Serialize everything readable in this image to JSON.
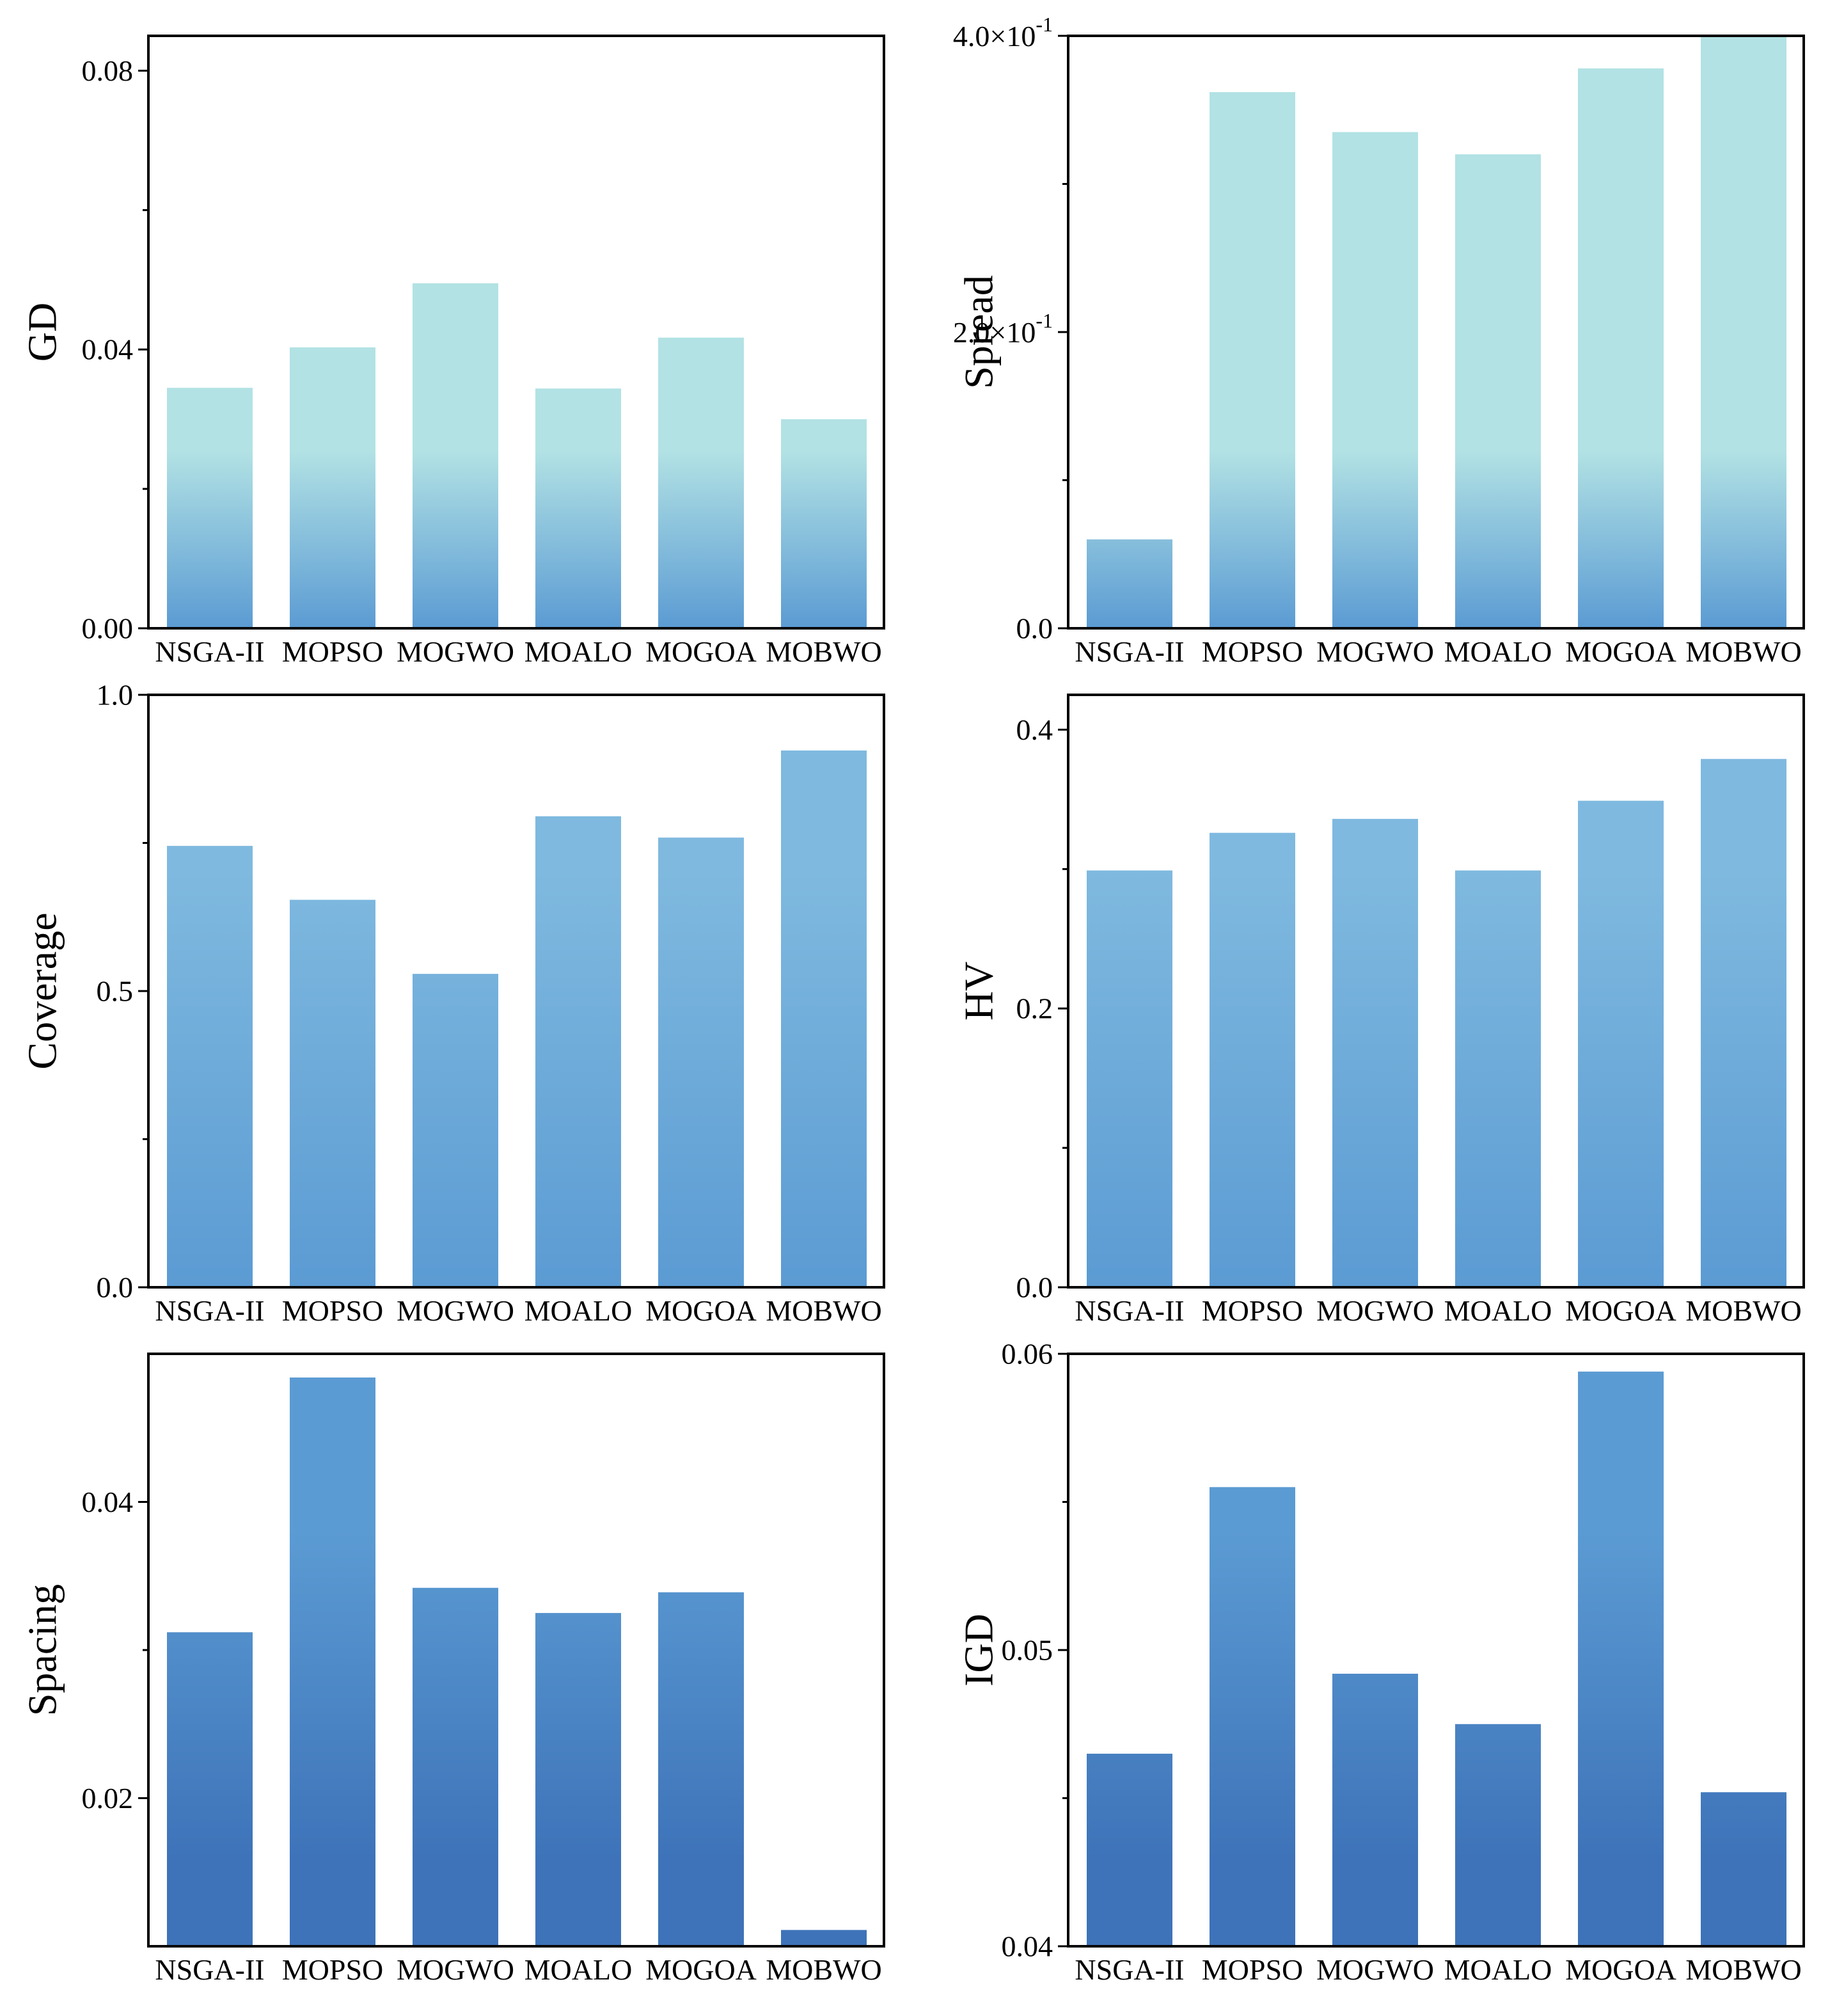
{
  "figure": {
    "colors": {
      "top": "#b2e2e4",
      "mid": "#7fb9df",
      "low": "#5b9bd3",
      "deep": "#3e73b9"
    }
  },
  "chart_data": [
    {
      "id": "gd",
      "type": "bar",
      "title": "",
      "ylabel": "GD",
      "xlabel": "",
      "categories": [
        "NSGA-II",
        "MOPSO",
        "MOGWO",
        "MOALO",
        "MOGOA",
        "MOBWO"
      ],
      "values": [
        0.0345,
        0.0403,
        0.0495,
        0.0344,
        0.0417,
        0.03
      ],
      "ylim": [
        0,
        0.085
      ],
      "major_ticks": [
        0,
        0.04,
        0.08
      ],
      "tick_labels": [
        "0.00",
        "0.04",
        "0.08"
      ],
      "minor_ticks": [
        0.02,
        0.06
      ],
      "grid": false,
      "gradient": {
        "range": [
          0,
          0.085
        ],
        "from": "low",
        "to": "top",
        "start": 0.0,
        "end": 0.3
      }
    },
    {
      "id": "spread",
      "type": "bar",
      "title": "",
      "ylabel": "Spread",
      "xlabel": "",
      "categories": [
        "NSGA-II",
        "MOPSO",
        "MOGWO",
        "MOALO",
        "MOGOA",
        "MOBWO"
      ],
      "values": [
        0.06,
        0.362,
        0.335,
        0.32,
        0.378,
        0.4
      ],
      "ylim": [
        0,
        0.4
      ],
      "major_ticks": [
        0,
        0.2,
        0.4
      ],
      "tick_labels": [
        {
          "text": "0.0"
        },
        {
          "mantissa": "2.0×10",
          "exponent": "-1"
        },
        {
          "mantissa": "4.0×10",
          "exponent": "-1"
        }
      ],
      "minor_ticks": [
        0.1,
        0.3
      ],
      "grid": false,
      "gradient": {
        "range": [
          0,
          0.4
        ],
        "from": "low",
        "to": "top",
        "start": 0.0,
        "end": 0.3
      }
    },
    {
      "id": "coverage",
      "type": "bar",
      "title": "",
      "ylabel": "Coverage",
      "xlabel": "",
      "categories": [
        "NSGA-II",
        "MOPSO",
        "MOGWO",
        "MOALO",
        "MOGOA",
        "MOBWO"
      ],
      "values": [
        0.745,
        0.654,
        0.529,
        0.795,
        0.759,
        0.906
      ],
      "ylim": [
        0,
        1.0
      ],
      "major_ticks": [
        0,
        0.5,
        1.0
      ],
      "tick_labels": [
        "0.0",
        "0.5",
        "1.0"
      ],
      "minor_ticks": [
        0.25,
        0.75
      ],
      "grid": false,
      "gradient": {
        "range": [
          0,
          1.0
        ],
        "from": "low",
        "to": "mid",
        "start": 0.0,
        "end": 0.7
      }
    },
    {
      "id": "hv",
      "type": "bar",
      "title": "",
      "ylabel": "HV",
      "xlabel": "",
      "categories": [
        "NSGA-II",
        "MOPSO",
        "MOGWO",
        "MOALO",
        "MOGOA",
        "MOBWO"
      ],
      "values": [
        0.299,
        0.326,
        0.336,
        0.299,
        0.349,
        0.379
      ],
      "ylim": [
        0,
        0.425
      ],
      "major_ticks": [
        0,
        0.2,
        0.4
      ],
      "tick_labels": [
        "0.0",
        "0.2",
        "0.4"
      ],
      "minor_ticks": [
        0.1,
        0.3
      ],
      "grid": false,
      "gradient": {
        "range": [
          0,
          0.425
        ],
        "from": "low",
        "to": "mid",
        "start": 0.0,
        "end": 0.7
      }
    },
    {
      "id": "spacing",
      "type": "bar",
      "title": "",
      "ylabel": "Spacing",
      "xlabel": "",
      "categories": [
        "NSGA-II",
        "MOPSO",
        "MOGWO",
        "MOALO",
        "MOGOA",
        "MOBWO"
      ],
      "values": [
        0.0312,
        0.0484,
        0.0342,
        0.0325,
        0.0339,
        0.0111
      ],
      "ylim": [
        0.01,
        0.05
      ],
      "major_ticks": [
        0.02,
        0.04
      ],
      "tick_labels": [
        "0.02",
        "0.04"
      ],
      "minor_ticks": [
        0.03
      ],
      "grid": false,
      "gradient": {
        "range": [
          0.01,
          0.05
        ],
        "from": "deep",
        "to": "low",
        "start": 0.15,
        "end": 0.7
      }
    },
    {
      "id": "igd",
      "type": "bar",
      "title": "",
      "ylabel": "IGD",
      "xlabel": "",
      "categories": [
        "NSGA-II",
        "MOPSO",
        "MOGWO",
        "MOALO",
        "MOGOA",
        "MOBWO"
      ],
      "values": [
        0.0465,
        0.0555,
        0.0492,
        0.0475,
        0.0594,
        0.0452
      ],
      "ylim": [
        0.04,
        0.06
      ],
      "major_ticks": [
        0.04,
        0.05,
        0.06
      ],
      "tick_labels": [
        "0.04",
        "0.05",
        "0.06"
      ],
      "minor_ticks": [
        0.045,
        0.055
      ],
      "grid": false,
      "gradient": {
        "range": [
          0.04,
          0.06
        ],
        "from": "deep",
        "to": "low",
        "start": 0.15,
        "end": 0.7
      }
    }
  ]
}
